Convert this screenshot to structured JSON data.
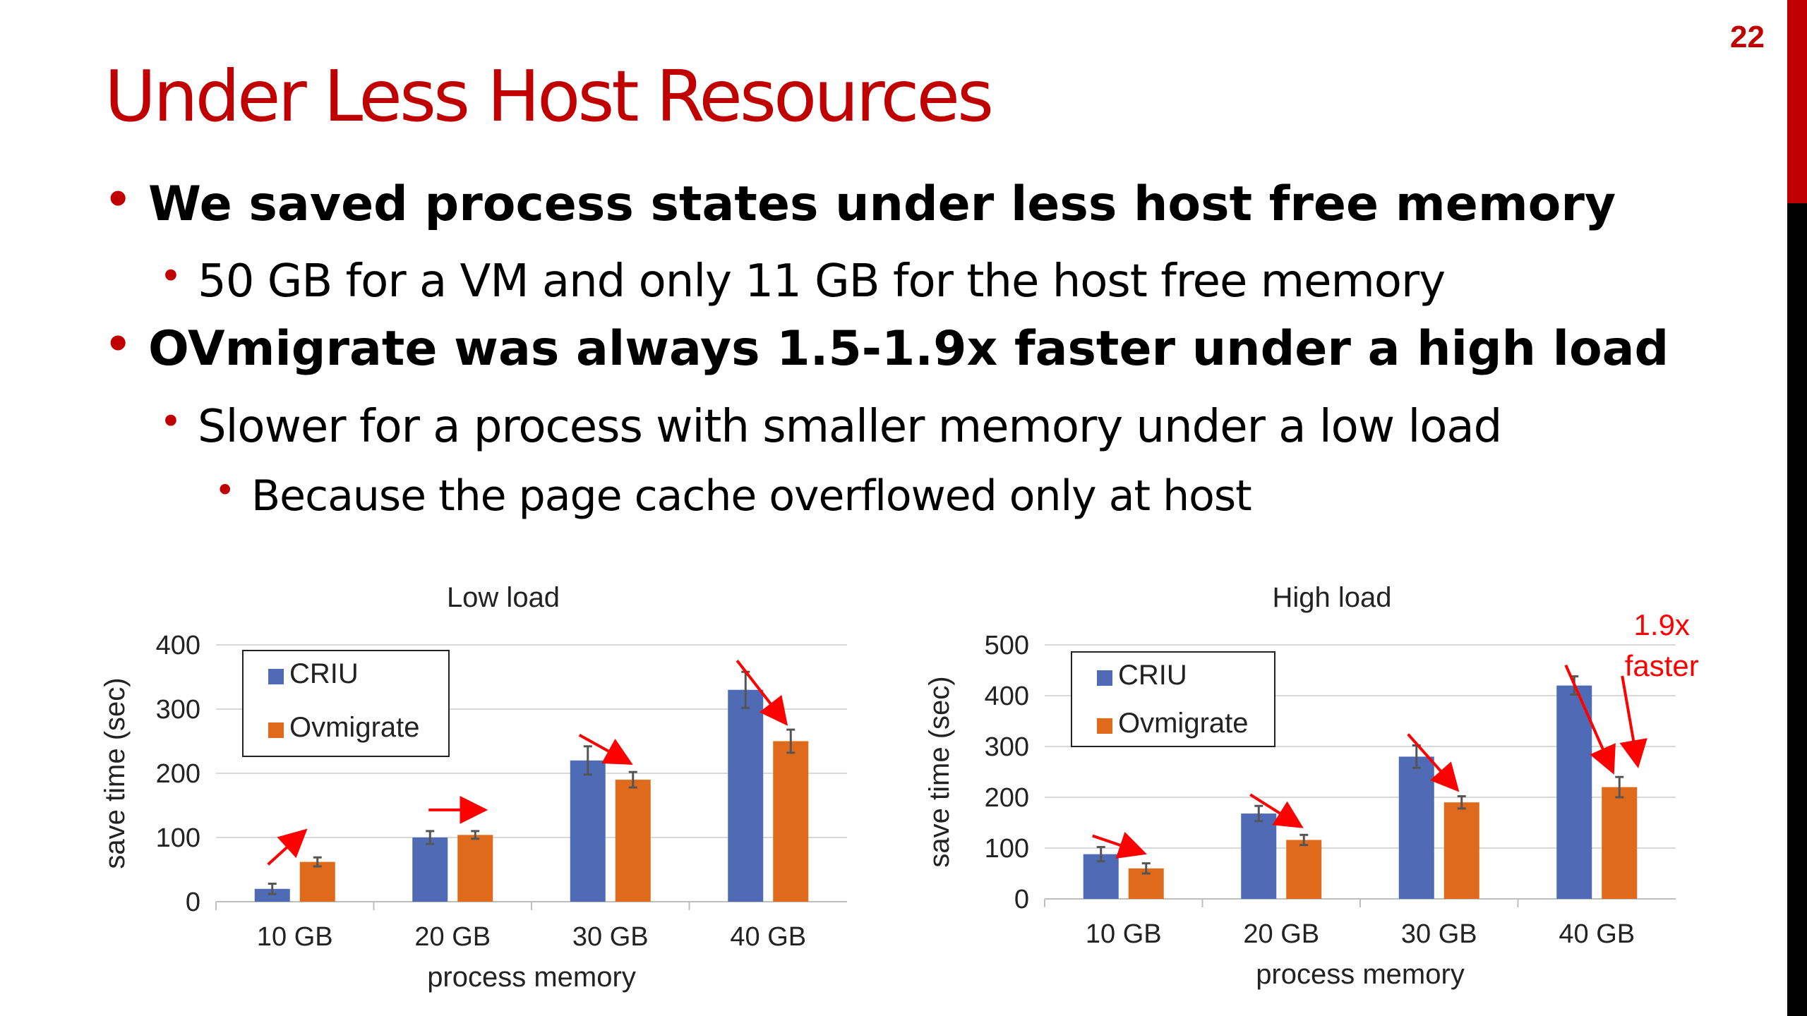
{
  "slide": {
    "number": "22",
    "title": "Under Less Host Resources",
    "accent_color": "#c00000"
  },
  "bullets": [
    {
      "level": 1,
      "text": "We saved process states under less host free memory"
    },
    {
      "level": 2,
      "text": "50 GB for a VM and only 11 GB for the host free memory"
    },
    {
      "level": 1,
      "text": "OVmigrate was always 1.5-1.9x faster under a high load"
    },
    {
      "level": 2,
      "text": "Slower for a process with smaller memory under a low load"
    },
    {
      "level": 3,
      "text": "Because the page cache overflowed only at host"
    }
  ],
  "chart_data": [
    {
      "type": "bar",
      "title": "Low load",
      "xlabel": "process memory",
      "ylabel": "save time (sec)",
      "categories": [
        "10 GB",
        "20 GB",
        "30 GB",
        "40 GB"
      ],
      "ylim": [
        0,
        400
      ],
      "yticks": [
        0,
        100,
        200,
        300,
        400
      ],
      "grid": true,
      "legend_position": "top-left",
      "series": [
        {
          "name": "CRIU",
          "color": "#4f6bb5",
          "values": [
            20,
            100,
            220,
            330
          ],
          "errors": [
            8,
            10,
            22,
            28
          ]
        },
        {
          "name": "Ovmigrate",
          "color": "#e06a1b",
          "values": [
            62,
            104,
            190,
            250
          ],
          "errors": [
            7,
            6,
            12,
            18
          ]
        }
      ],
      "annotations": [
        {
          "type": "arrow",
          "category": "10 GB",
          "direction": "up"
        },
        {
          "type": "arrow",
          "category": "20 GB",
          "direction": "right"
        },
        {
          "type": "arrow",
          "category": "30 GB",
          "direction": "down"
        },
        {
          "type": "arrow",
          "category": "40 GB",
          "direction": "down"
        }
      ]
    },
    {
      "type": "bar",
      "title": "High load",
      "xlabel": "process memory",
      "ylabel": "save time (sec)",
      "categories": [
        "10 GB",
        "20 GB",
        "30 GB",
        "40 GB"
      ],
      "ylim": [
        0,
        500
      ],
      "yticks": [
        0,
        100,
        200,
        300,
        400,
        500
      ],
      "grid": true,
      "legend_position": "top-left",
      "series": [
        {
          "name": "CRIU",
          "color": "#4f6bb5",
          "values": [
            88,
            168,
            280,
            420
          ],
          "errors": [
            14,
            15,
            22,
            18
          ]
        },
        {
          "name": "Ovmigrate",
          "color": "#e06a1b",
          "values": [
            60,
            116,
            190,
            220
          ],
          "errors": [
            10,
            10,
            12,
            20
          ]
        }
      ],
      "annotations": [
        {
          "type": "arrow",
          "category": "10 GB",
          "direction": "down"
        },
        {
          "type": "arrow",
          "category": "20 GB",
          "direction": "down"
        },
        {
          "type": "arrow",
          "category": "30 GB",
          "direction": "down"
        },
        {
          "type": "arrow",
          "category": "40 GB",
          "direction": "down"
        },
        {
          "type": "text",
          "lines": [
            "1.9x",
            "faster"
          ],
          "color": "#ff0000"
        }
      ]
    }
  ]
}
